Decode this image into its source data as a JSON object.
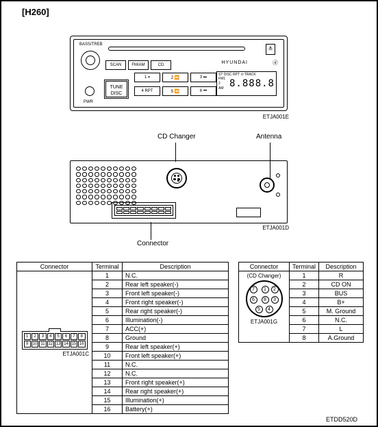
{
  "model": "[H260]",
  "radio": {
    "bass_label": "BASS/TREB",
    "tune1": "TUNE",
    "tune2": "DISC",
    "scan": "SCAN",
    "fmam": "FM/AM",
    "cd": "CD",
    "p1": "1 ⏸",
    "p2": "2 ⏩",
    "p3": "3 ⏭",
    "p4": "4 RPT",
    "p5": "5 ⏪",
    "p6": "6 ⏮",
    "eject": "≜",
    "brand": "HYUNDAI",
    "cd_logo": "ⓓ",
    "disp_top": "ST DISC RPT ⟲ TRACK",
    "disp_fm": "FM1 2",
    "disp_am": "AM",
    "segs": "8.888.8",
    "pwr": "PWR",
    "img_code": "ETJA001E"
  },
  "rear": {
    "cd_label": "CD Changer",
    "ant_label": "Antenna",
    "conn_label": "Connector",
    "img_code": "ETJA001D"
  },
  "table_left": {
    "h1": "Connector",
    "h2": "Terminal",
    "h3": "Description",
    "conn_code": "ETJA001C",
    "rows": [
      {
        "t": "1",
        "d": "N.C."
      },
      {
        "t": "2",
        "d": "Rear left speaker(-)"
      },
      {
        "t": "3",
        "d": "Front left speaker(-)"
      },
      {
        "t": "4",
        "d": "Front right speaker(-)"
      },
      {
        "t": "5",
        "d": "Rear right speaker(-)"
      },
      {
        "t": "6",
        "d": "Illumination(-)"
      },
      {
        "t": "7",
        "d": "ACC(+)"
      },
      {
        "t": "8",
        "d": "Ground"
      },
      {
        "t": "9",
        "d": "Rear left speaker(+)"
      },
      {
        "t": "10",
        "d": "Front left speaker(+)"
      },
      {
        "t": "11",
        "d": "N.C."
      },
      {
        "t": "12",
        "d": "N.C."
      },
      {
        "t": "13",
        "d": "Front right speaker(+)"
      },
      {
        "t": "14",
        "d": "Rear right speaker(+)"
      },
      {
        "t": "15",
        "d": "Illumination(+)"
      },
      {
        "t": "16",
        "d": "Battery(+)"
      }
    ],
    "pins": [
      "1",
      "2",
      "3",
      "4",
      "5",
      "6",
      "7",
      "8",
      "9",
      "10",
      "11",
      "12",
      "13",
      "14",
      "15",
      "16"
    ]
  },
  "table_right": {
    "h1": "Connector",
    "h2": "Terminal",
    "h3": "Description",
    "sub": "(CD Changer)",
    "conn_code": "ETJA001G",
    "rows": [
      {
        "t": "1",
        "d": "R"
      },
      {
        "t": "2",
        "d": "CD ON"
      },
      {
        "t": "3",
        "d": "BUS"
      },
      {
        "t": "4",
        "d": "B+"
      },
      {
        "t": "5",
        "d": "M. Ground"
      },
      {
        "t": "6",
        "d": "N.C."
      },
      {
        "t": "7",
        "d": "L"
      },
      {
        "t": "8",
        "d": "A.Ground"
      }
    ],
    "pins": [
      "7",
      "1",
      "2",
      "6",
      "8",
      "3",
      "5",
      "4"
    ]
  },
  "footer_code": "ETDD520D"
}
